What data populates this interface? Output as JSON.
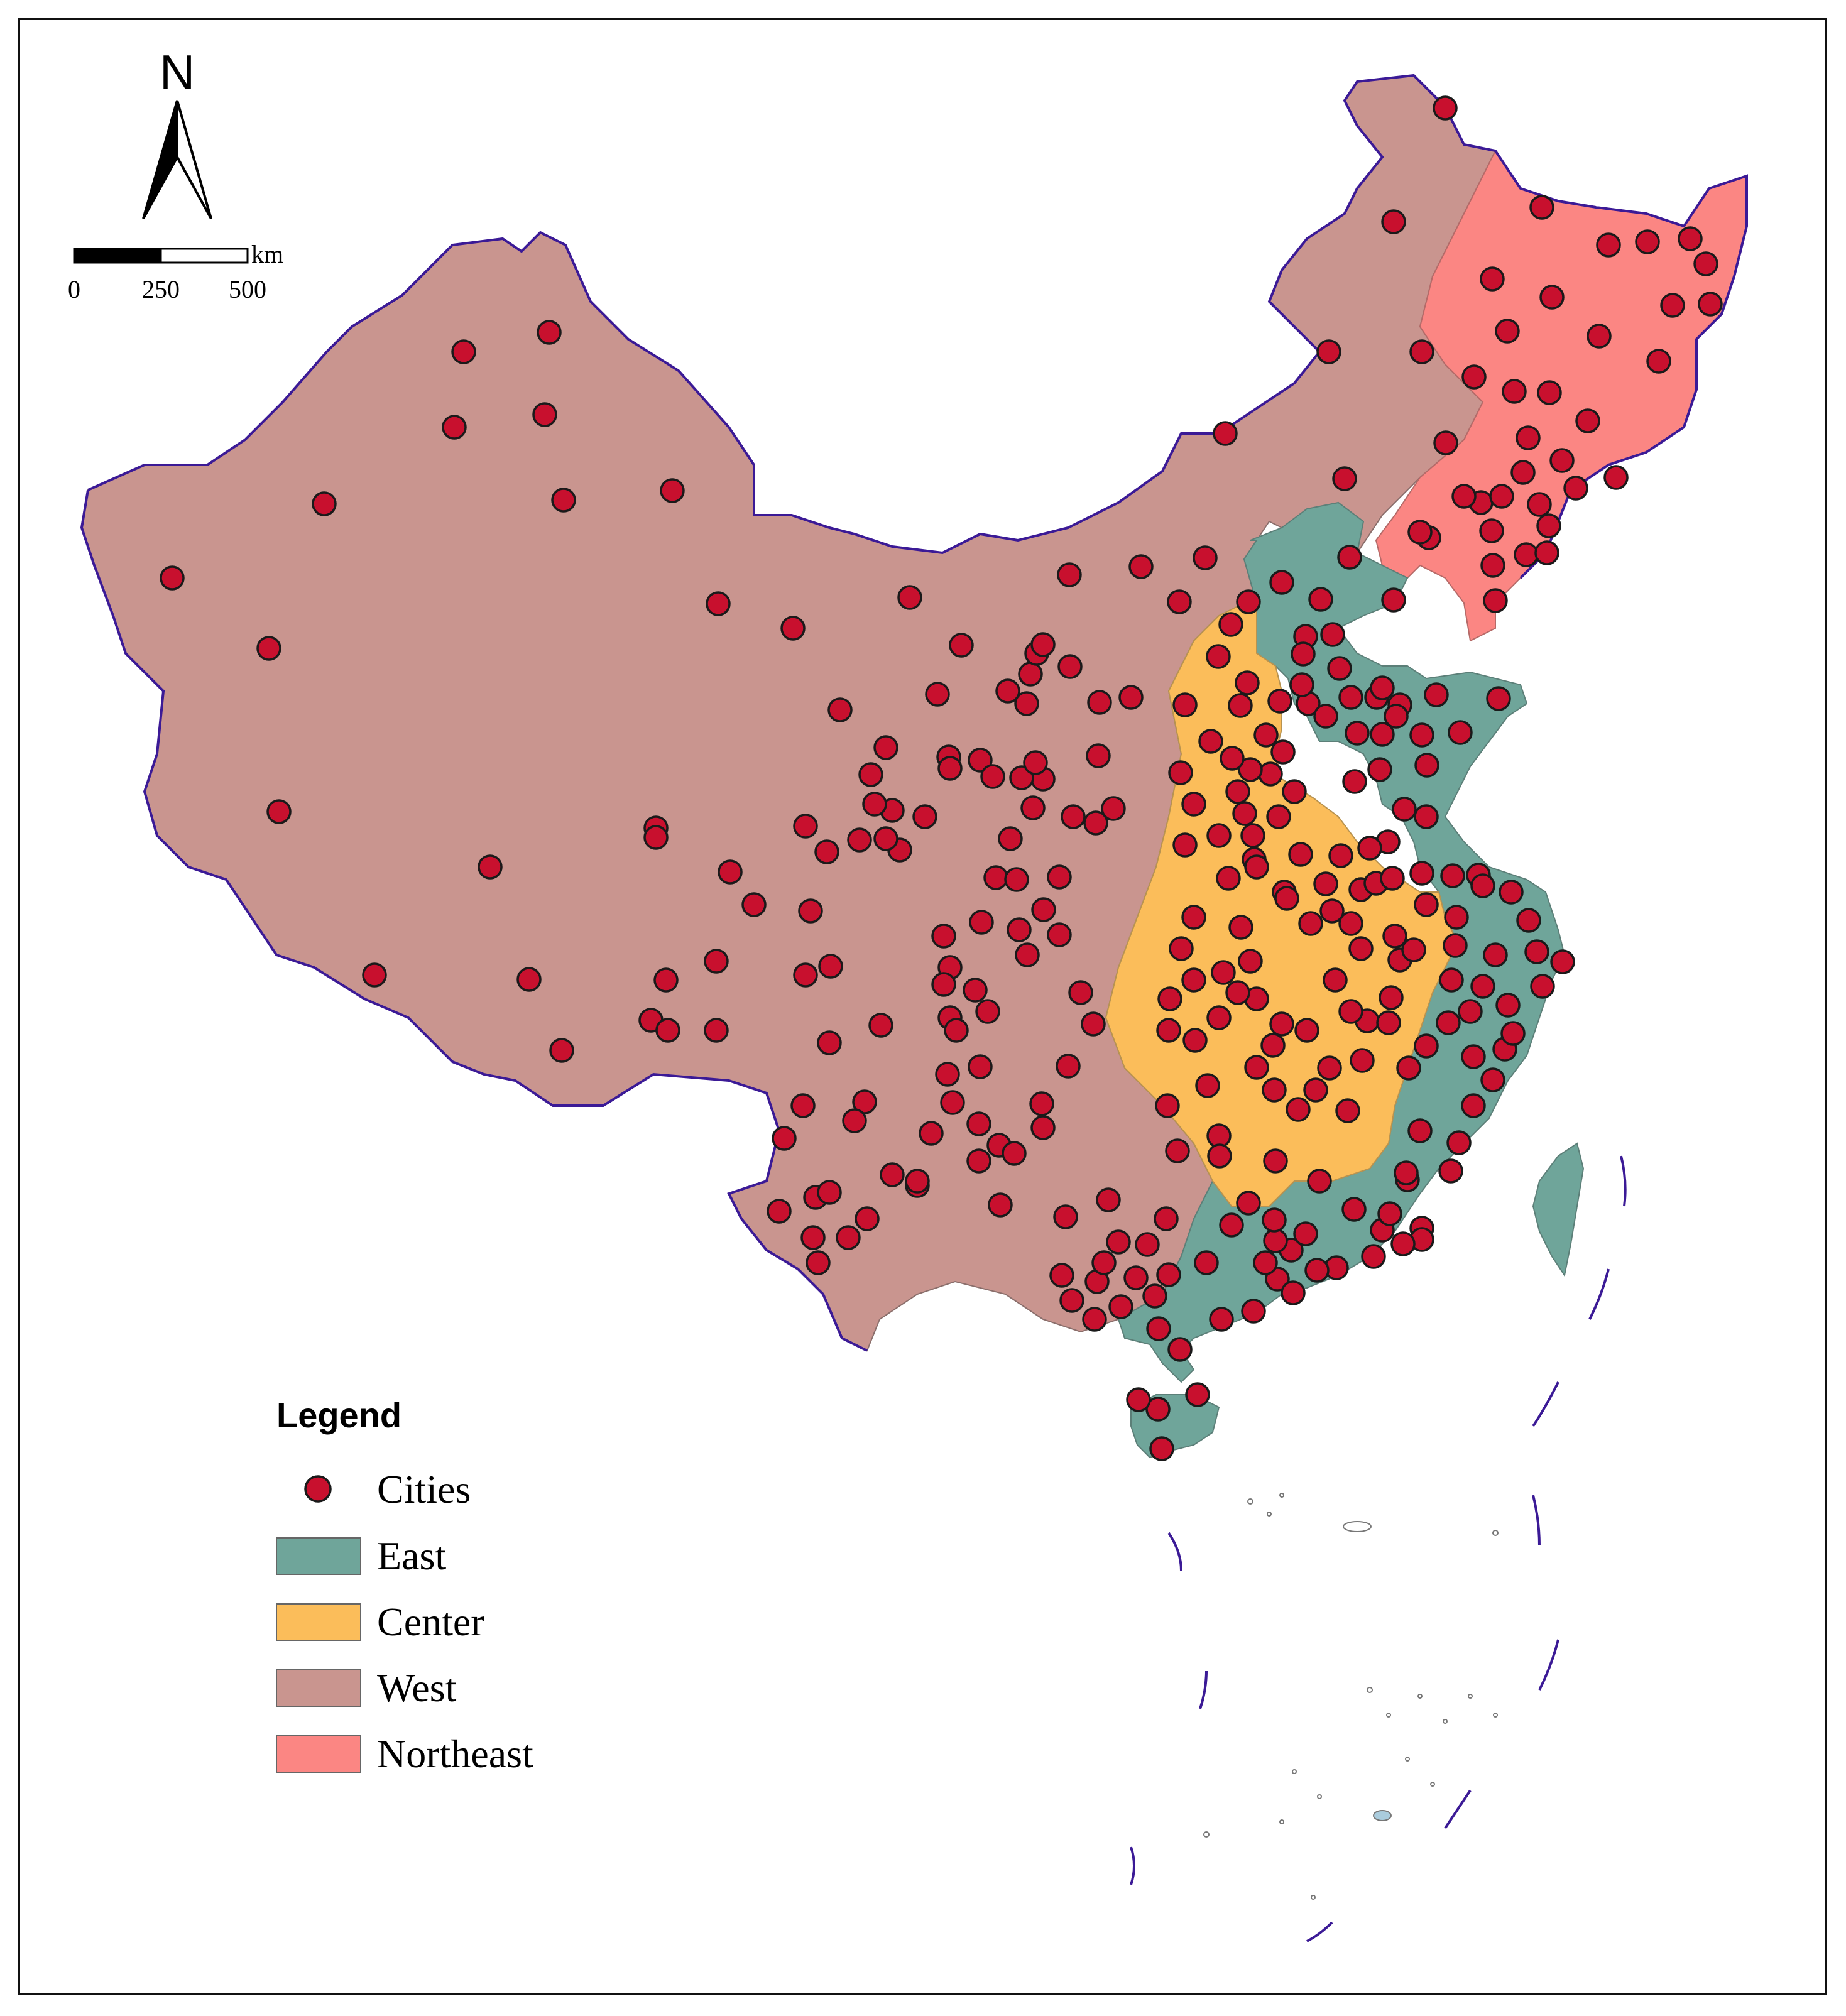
{
  "north_arrow": {
    "letter": "N"
  },
  "scale_bar": {
    "unit": "km",
    "ticks": [
      "0",
      "250",
      "500"
    ]
  },
  "legend": {
    "title": "Legend",
    "items": [
      {
        "key": "cities",
        "label": "Cities",
        "color": "#c8102e",
        "symbol": "circle"
      },
      {
        "key": "east",
        "label": "East",
        "color": "#6fa59a",
        "symbol": "rect"
      },
      {
        "key": "center",
        "label": "Center",
        "color": "#fbbd5a",
        "symbol": "rect"
      },
      {
        "key": "west",
        "label": "West",
        "color": "#c9958f",
        "symbol": "rect"
      },
      {
        "key": "northeast",
        "label": "Northeast",
        "color": "#fb8683",
        "symbol": "rect"
      }
    ]
  },
  "colors": {
    "east": "#6fa59a",
    "center": "#fbbd5a",
    "west": "#c9958f",
    "northeast": "#fb8683",
    "city": "#c8102e",
    "national_border": "#3b1a96"
  }
}
